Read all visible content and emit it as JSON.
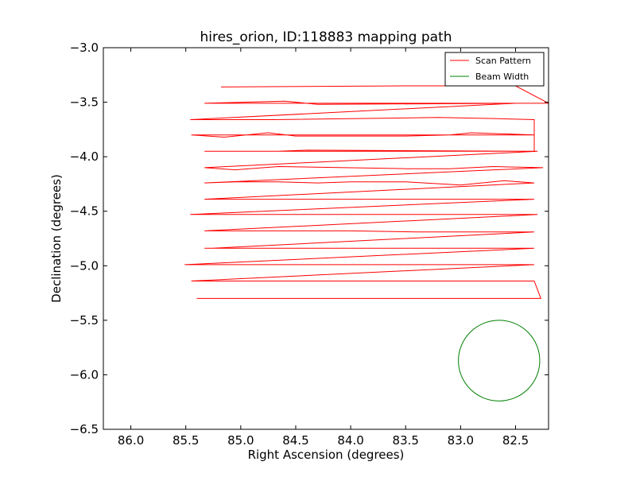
{
  "chart_data": {
    "type": "line",
    "title": "hires_orion, ID:118883 mapping path",
    "xlabel": "Right Ascension (degrees)",
    "ylabel": "Declination (degrees)",
    "xlim": [
      86.25,
      82.2
    ],
    "ylim": [
      -6.5,
      -3.0
    ],
    "x_ticks": [
      86.0,
      85.5,
      85.0,
      84.5,
      84.0,
      83.5,
      83.0,
      82.5
    ],
    "x_tick_labels": [
      "86.0",
      "85.5",
      "85.0",
      "84.5",
      "84.0",
      "83.5",
      "83.0",
      "82.5"
    ],
    "y_ticks": [
      -3.0,
      -3.5,
      -4.0,
      -4.5,
      -5.0,
      -5.5,
      -6.0,
      -6.5
    ],
    "y_tick_labels": [
      "−3.0",
      "−3.5",
      "−4.0",
      "−4.5",
      "−5.0",
      "−5.5",
      "−6.0",
      "−6.5"
    ],
    "grid": false,
    "legend_position": "top-right",
    "series": [
      {
        "name": "Scan Pattern",
        "color": "#ff0000",
        "x": [
          85.18,
          83.5,
          82.5,
          82.2,
          85.33,
          84.6,
          84.3,
          82.5,
          85.46,
          84.7,
          83.2,
          82.7,
          82.33,
          82.33,
          85.45,
          85.15,
          84.75,
          84.5,
          83.9,
          83.5,
          83.1,
          82.9,
          82.33,
          82.33,
          85.33,
          85.05,
          84.66,
          84.4,
          82.3,
          85.33,
          85.05,
          84.66,
          83.5,
          83.1,
          82.7,
          82.25,
          85.33,
          85.05,
          84.66,
          84.3,
          84.0,
          83.5,
          83.0,
          82.6,
          82.33,
          85.33,
          84.35,
          83.5,
          83.0,
          82.7,
          82.33,
          85.46,
          85.33,
          85.0,
          84.66,
          84.4,
          83.5,
          83.0,
          82.6,
          82.3,
          85.33,
          85.05,
          84.5,
          84.0,
          83.4,
          83.0,
          82.7,
          82.33,
          85.26,
          85.33,
          84.6,
          84.4,
          83.5,
          83.1,
          82.75,
          82.33,
          85.51,
          85.33,
          84.9,
          84.7,
          84.4,
          83.5,
          83.0,
          82.6,
          82.33,
          85.45,
          85.33,
          85.0,
          84.7,
          84.3,
          83.5,
          83.1,
          82.9,
          82.33,
          82.27,
          85.4,
          85.33,
          85.0,
          84.66,
          84.4,
          84.0
        ],
        "y": [
          -3.36,
          -3.35,
          -3.35,
          -3.51,
          -3.51,
          -3.49,
          -3.52,
          -3.51,
          -3.66,
          -3.66,
          -3.64,
          -3.65,
          -3.66,
          -3.8,
          -3.8,
          -3.82,
          -3.78,
          -3.81,
          -3.81,
          -3.81,
          -3.8,
          -3.78,
          -3.8,
          -3.95,
          -3.95,
          -3.95,
          -3.95,
          -3.94,
          -3.95,
          -4.1,
          -4.12,
          -4.09,
          -4.11,
          -4.11,
          -4.09,
          -4.1,
          -4.24,
          -4.23,
          -4.23,
          -4.24,
          -4.23,
          -4.23,
          -4.26,
          -4.22,
          -4.24,
          -4.39,
          -4.39,
          -4.39,
          -4.39,
          -4.39,
          -4.39,
          -4.53,
          -4.53,
          -4.53,
          -4.53,
          -4.53,
          -4.53,
          -4.53,
          -4.53,
          -4.53,
          -4.68,
          -4.68,
          -4.68,
          -4.68,
          -4.69,
          -4.69,
          -4.69,
          -4.69,
          -4.84,
          -4.84,
          -4.84,
          -4.84,
          -4.84,
          -4.84,
          -4.84,
          -4.84,
          -4.99,
          -4.99,
          -4.99,
          -4.99,
          -4.99,
          -4.99,
          -4.99,
          -4.99,
          -4.99,
          -5.14,
          -5.14,
          -5.14,
          -5.14,
          -5.14,
          -5.14,
          -5.14,
          -5.14,
          -5.14,
          -5.3,
          -5.3,
          -5.3,
          -5.3,
          -5.3,
          -5.3,
          -5.3
        ]
      },
      {
        "name": "Beam Width",
        "color": "#008000",
        "shape": "circle",
        "center_x": 82.65,
        "center_y": -5.87,
        "radius_deg": 0.37
      }
    ]
  }
}
